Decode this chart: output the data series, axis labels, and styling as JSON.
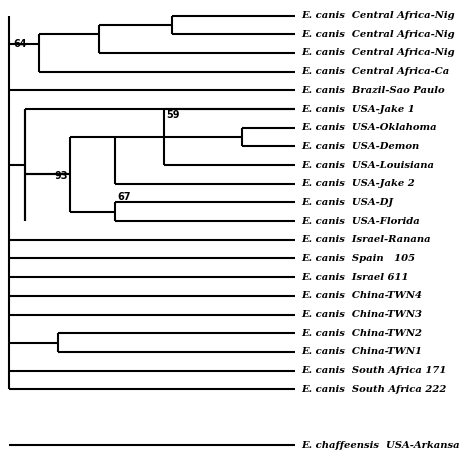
{
  "background_color": "#ffffff",
  "taxa": [
    "E. canis  Central Africa-Nig",
    "E. canis  Central Africa-Nig",
    "E. canis  Central Africa-Nig",
    "E. canis  Central Africa-Ca",
    "E. canis  Brazil-Sao Paulo",
    "E. canis  USA-Jake 1",
    "E. canis  USA-Oklahoma",
    "E. canis  USA-Demon",
    "E. canis  USA-Louisiana",
    "E. canis  USA-Jake 2",
    "E. canis  USA-DJ",
    "E. canis  USA-Florida",
    "E. canis  Israel-Ranana",
    "E. canis  Spain   105",
    "E. canis  Israel 611",
    "E. canis  China-TWN4",
    "E. canis  China-TWN3",
    "E. canis  China-TWN2",
    "E. canis  China-TWN1",
    "E. canis  South Africa 171",
    "E. canis  South Africa 222",
    "E. chaffeensis  USA-Arkansa"
  ],
  "lw": 1.5,
  "font_size": 7.2,
  "label_font_size": 7.0
}
